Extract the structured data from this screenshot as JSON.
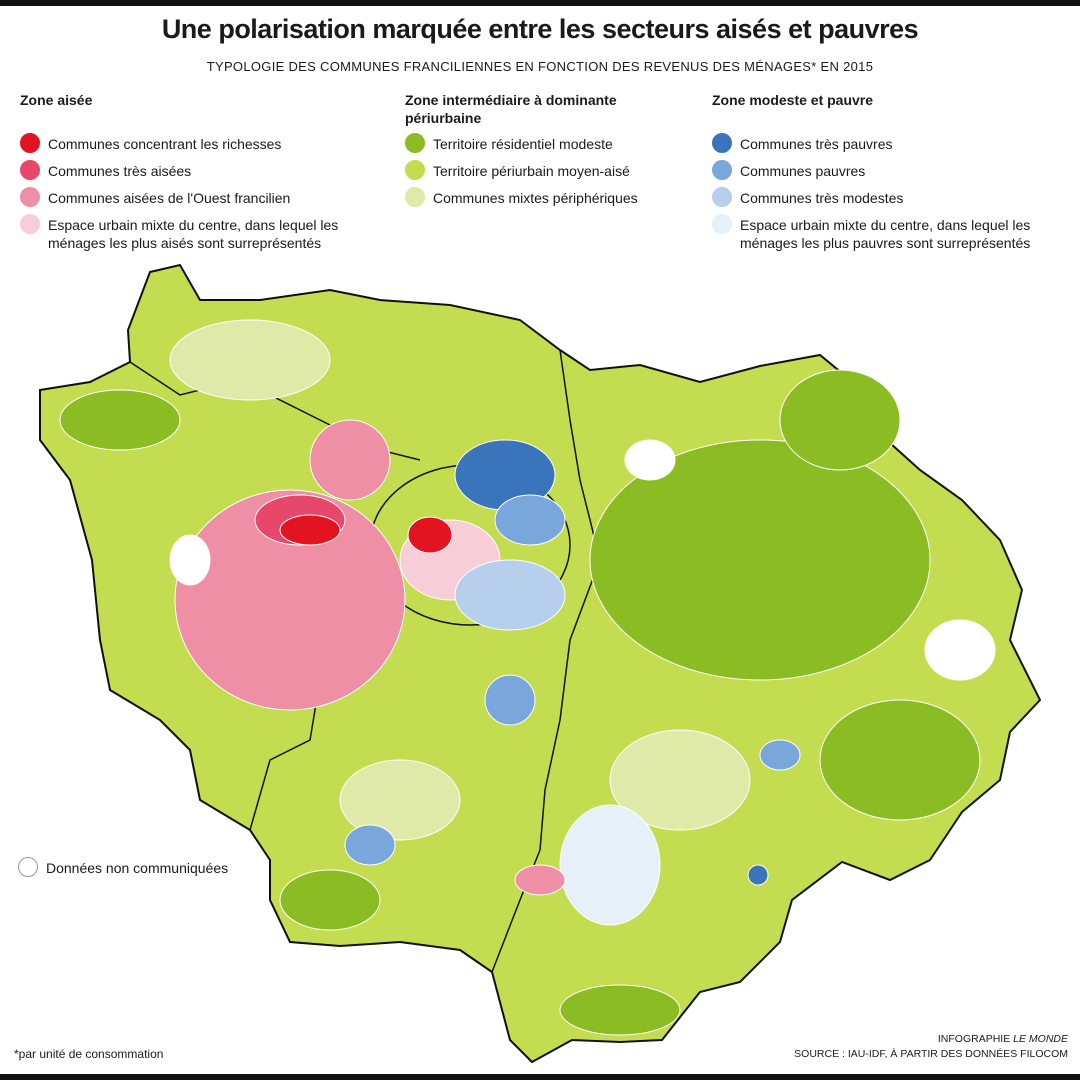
{
  "header": {
    "title": "Une polarisation marquée entre les secteurs aisés et pauvres",
    "subtitle": "TYPOLOGIE DES COMMUNES FRANCILIENNES EN FONCTION DES REVENUS DES MÉNAGES* EN 2015"
  },
  "legend": {
    "groups": [
      {
        "title": "Zone aisée",
        "items": [
          {
            "label": "Communes concentrant les richesses",
            "color": "#e2141f"
          },
          {
            "label": "Communes très aisées",
            "color": "#e6476a"
          },
          {
            "label": "Communes aisées de l'Ouest francilien",
            "color": "#ee8fa6"
          },
          {
            "label": "Espace urbain mixte du centre, dans lequel les ménages les plus aisés sont surreprésentés",
            "color": "#f7cdd8"
          }
        ]
      },
      {
        "title": "Zone intermédiaire à dominante périurbaine",
        "items": [
          {
            "label": "Territoire résidentiel modeste",
            "color": "#8cbc23"
          },
          {
            "label": "Territoire périurbain moyen-aisé",
            "color": "#c4dc50"
          },
          {
            "label": "Communes mixtes périphériques",
            "color": "#dfeaa8"
          }
        ]
      },
      {
        "title": "Zone modeste et pauvre",
        "items": [
          {
            "label": "Communes très pauvres",
            "color": "#3a74ba"
          },
          {
            "label": "Communes pauvres",
            "color": "#79a6db"
          },
          {
            "label": "Communes très modestes",
            "color": "#b5cfec"
          },
          {
            "label": "Espace urbain mixte du centre, dans lequel les ménages les plus pauvres sont surreprésentés",
            "color": "#e6f0f9"
          }
        ]
      }
    ],
    "no_data": {
      "label": "Données non communiquées",
      "color": "#ffffff"
    }
  },
  "footnote": "*par unité de consommation",
  "credit": {
    "prefix": "INFOGRAPHIE",
    "publication": "LE MONDE",
    "source": "SOURCE : IAU-IDF, À PARTIR DES DONNÉES FILOCOM"
  }
}
